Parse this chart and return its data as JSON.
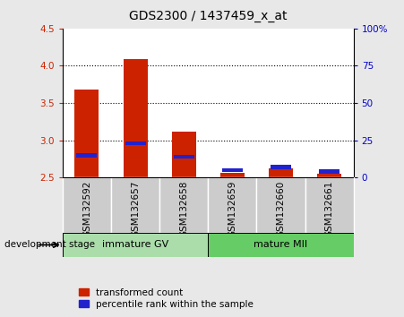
{
  "title": "GDS2300 / 1437459_x_at",
  "samples": [
    "GSM132592",
    "GSM132657",
    "GSM132658",
    "GSM132659",
    "GSM132660",
    "GSM132661"
  ],
  "red_values": [
    3.68,
    4.09,
    3.12,
    2.56,
    2.62,
    2.55
  ],
  "blue_percentile": [
    15,
    23,
    14,
    5,
    7,
    4
  ],
  "ylim_min": 2.5,
  "ylim_max": 4.5,
  "yticks": [
    2.5,
    3.0,
    3.5,
    4.0,
    4.5
  ],
  "right_yticks": [
    0,
    25,
    50,
    75,
    100
  ],
  "right_ylabels": [
    "0",
    "25",
    "50",
    "75",
    "100%"
  ],
  "group_labels": [
    "immature GV",
    "mature MII"
  ],
  "group_ranges": [
    [
      0,
      3
    ],
    [
      3,
      6
    ]
  ],
  "group_color_1": "#aaddaa",
  "group_color_2": "#66cc66",
  "bar_width": 0.5,
  "red_color": "#cc2200",
  "blue_color": "#2222cc",
  "background_color": "#e8e8e8",
  "plot_bg": "#ffffff",
  "sample_box_color": "#cccccc",
  "tick_label_color": "#cc2200",
  "right_tick_color": "#0000cc",
  "grid_color": "#000000",
  "legend_red": "transformed count",
  "legend_blue": "percentile rank within the sample",
  "xlabel_left": "development stage",
  "title_fontsize": 10,
  "tick_fontsize": 7.5,
  "label_fontsize": 7.5,
  "group_fontsize": 8
}
